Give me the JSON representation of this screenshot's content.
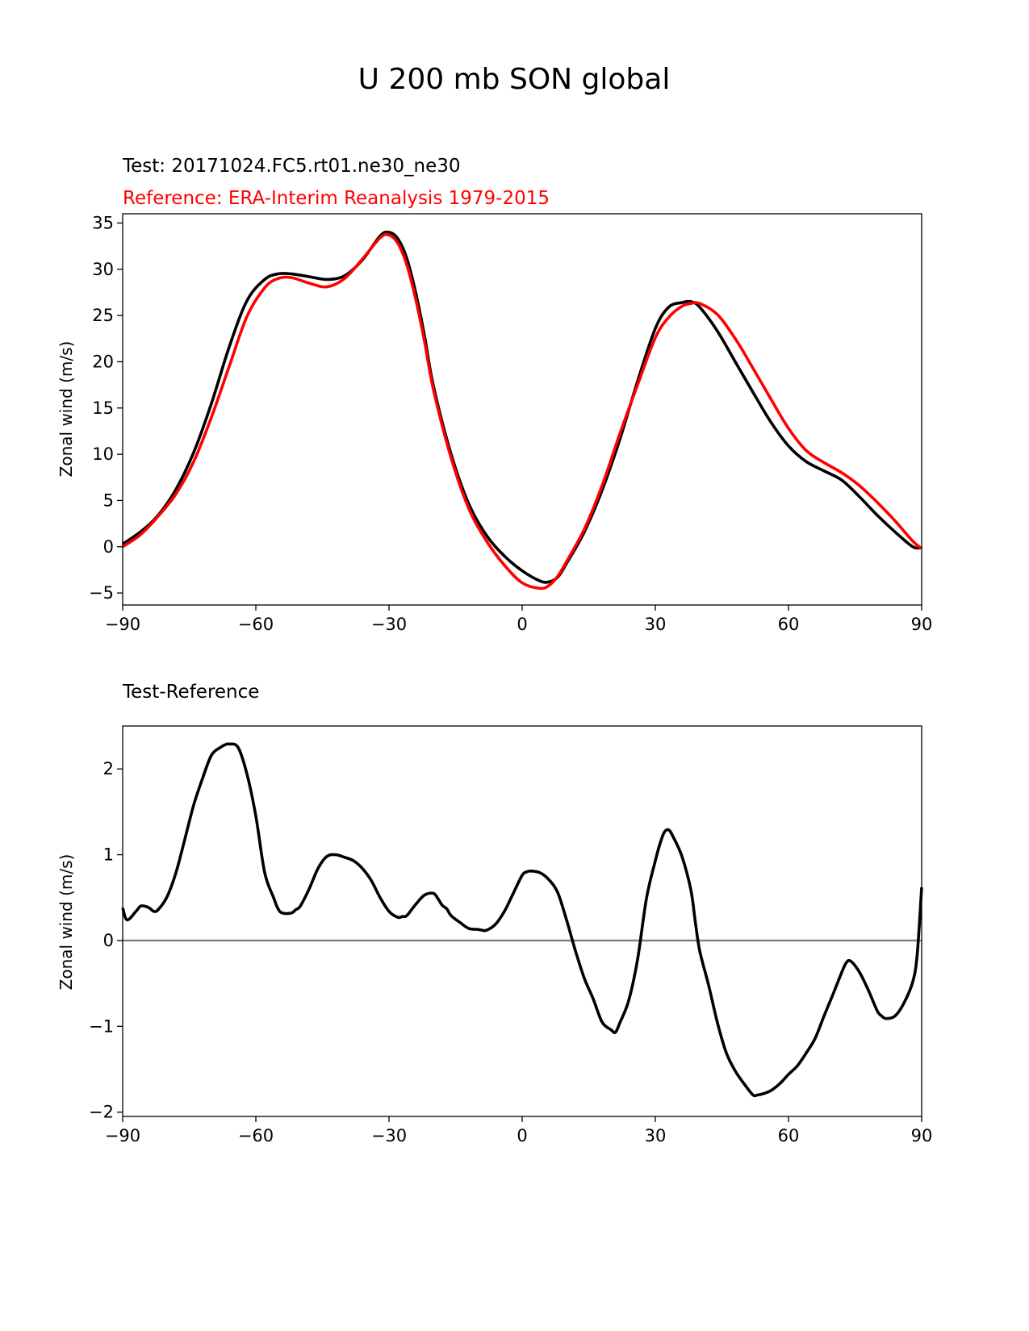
{
  "figure": {
    "title": "U 200 mb SON global"
  },
  "top_panel": {
    "test_label": "Test: 20171024.FC5.rt01.ne30_ne30",
    "reference_label": "Reference: ERA-Interim Reanalysis 1979-2015",
    "ylabel": "Zonal wind (m/s)",
    "colors": {
      "test": "#000000",
      "reference": "#ff0000"
    }
  },
  "bottom_panel": {
    "title": "Test-Reference",
    "ylabel": "Zonal wind (m/s)",
    "colors": {
      "diff": "#000000",
      "zero_line": "#808080"
    }
  },
  "chart_data": [
    {
      "type": "line",
      "title": "U 200 mb SON global",
      "xlabel": "",
      "ylabel": "Zonal wind (m/s)",
      "xlim": [
        -90,
        90
      ],
      "ylim": [
        -6.3,
        36
      ],
      "xticks": [
        -90,
        -60,
        -30,
        0,
        30,
        60,
        90
      ],
      "yticks": [
        -5,
        0,
        5,
        10,
        15,
        20,
        25,
        30,
        35
      ],
      "grid": false,
      "series": [
        {
          "name": "Test: 20171024.FC5.rt01.ne30_ne30",
          "color": "#000000",
          "x": [
            -90,
            -86,
            -82,
            -78,
            -74,
            -70,
            -66,
            -62,
            -58,
            -55,
            -52,
            -48,
            -44,
            -40,
            -36,
            -32,
            -30,
            -28,
            -26,
            -24,
            -22,
            -20,
            -16,
            -12,
            -8,
            -4,
            0,
            4,
            6,
            8,
            10,
            14,
            18,
            22,
            26,
            30,
            33,
            36,
            38,
            40,
            44,
            48,
            52,
            56,
            60,
            64,
            68,
            72,
            76,
            80,
            84,
            88,
            90
          ],
          "values": [
            0.3,
            1.6,
            3.4,
            6.2,
            10.2,
            15.5,
            21.6,
            26.6,
            28.9,
            29.5,
            29.5,
            29.2,
            28.9,
            29.3,
            31.0,
            33.6,
            34.0,
            33.3,
            31.2,
            27.5,
            22.8,
            17.4,
            10.0,
            4.6,
            1.2,
            -1.0,
            -2.6,
            -3.7,
            -3.8,
            -3.3,
            -1.8,
            1.6,
            6.1,
            11.6,
            17.9,
            23.6,
            25.9,
            26.4,
            26.5,
            25.9,
            23.3,
            20.0,
            16.7,
            13.5,
            10.9,
            9.2,
            8.2,
            7.2,
            5.4,
            3.4,
            1.6,
            0.0,
            -0.1
          ]
        },
        {
          "name": "Reference: ERA-Interim Reanalysis 1979-2015",
          "color": "#ff0000",
          "x": [
            -90,
            -86,
            -82,
            -78,
            -74,
            -70,
            -66,
            -62,
            -58,
            -55,
            -52,
            -48,
            -44,
            -40,
            -36,
            -32,
            -30,
            -28,
            -26,
            -24,
            -22,
            -20,
            -16,
            -12,
            -8,
            -4,
            0,
            4,
            6,
            8,
            10,
            14,
            18,
            22,
            26,
            30,
            33,
            36,
            38,
            40,
            44,
            48,
            52,
            56,
            60,
            64,
            68,
            72,
            76,
            80,
            84,
            88,
            90
          ],
          "values": [
            0.0,
            1.3,
            3.3,
            5.7,
            9.2,
            14.0,
            19.5,
            24.9,
            28.0,
            29.0,
            29.1,
            28.5,
            28.1,
            29.0,
            31.1,
            33.4,
            33.7,
            32.8,
            30.5,
            26.8,
            22.2,
            17.0,
            9.6,
            4.1,
            0.6,
            -2.0,
            -3.9,
            -4.5,
            -4.2,
            -3.2,
            -1.6,
            1.9,
            6.6,
            12.2,
            17.5,
            22.6,
            24.8,
            26.0,
            26.3,
            26.3,
            25.1,
            22.5,
            19.3,
            16.0,
            12.8,
            10.4,
            9.1,
            8.0,
            6.6,
            4.8,
            2.8,
            0.6,
            -0.2
          ]
        }
      ]
    },
    {
      "type": "line",
      "title": "Test-Reference",
      "xlabel": "",
      "ylabel": "Zonal wind (m/s)",
      "xlim": [
        -90,
        90
      ],
      "ylim": [
        -2.05,
        2.5
      ],
      "xticks": [
        -90,
        -60,
        -30,
        0,
        30,
        60,
        90
      ],
      "yticks": [
        -2,
        -1,
        0,
        1,
        2
      ],
      "grid": false,
      "reference_line": 0,
      "series": [
        {
          "name": "Test-Reference",
          "color": "#000000",
          "x": [
            -90,
            -89,
            -87,
            -86,
            -85,
            -84,
            -83,
            -82,
            -80,
            -78,
            -76,
            -74,
            -72,
            -70,
            -68,
            -67,
            -66,
            -64,
            -62,
            -60,
            -58,
            -56,
            -55,
            -54,
            -52,
            -51,
            -50,
            -48,
            -46,
            -44,
            -42,
            -40,
            -38,
            -36,
            -34,
            -32,
            -30,
            -28,
            -27,
            -26,
            -24,
            -22,
            -20,
            -19,
            -18,
            -17,
            -16,
            -14,
            -12,
            -10,
            -9,
            -8,
            -6,
            -4,
            -2,
            0,
            1,
            2,
            4,
            6,
            8,
            10,
            12,
            14,
            16,
            18,
            20,
            21,
            22,
            24,
            26,
            28,
            30,
            31,
            32,
            33,
            34,
            36,
            38,
            39,
            40,
            42,
            44,
            46,
            48,
            50,
            52,
            53,
            54,
            56,
            58,
            60,
            62,
            64,
            66,
            68,
            70,
            72,
            73,
            74,
            76,
            78,
            80,
            81,
            82,
            84,
            86,
            88,
            89,
            90
          ],
          "values": [
            0.38,
            0.24,
            0.34,
            0.4,
            0.4,
            0.38,
            0.34,
            0.36,
            0.51,
            0.79,
            1.18,
            1.58,
            1.89,
            2.16,
            2.25,
            2.28,
            2.29,
            2.25,
            1.94,
            1.45,
            0.79,
            0.5,
            0.37,
            0.32,
            0.32,
            0.36,
            0.4,
            0.6,
            0.84,
            0.98,
            1.0,
            0.97,
            0.93,
            0.84,
            0.7,
            0.5,
            0.34,
            0.27,
            0.28,
            0.29,
            0.42,
            0.53,
            0.55,
            0.49,
            0.41,
            0.37,
            0.29,
            0.21,
            0.14,
            0.13,
            0.12,
            0.12,
            0.19,
            0.34,
            0.55,
            0.76,
            0.8,
            0.81,
            0.79,
            0.71,
            0.56,
            0.24,
            -0.12,
            -0.44,
            -0.68,
            -0.95,
            -1.04,
            -1.07,
            -0.96,
            -0.7,
            -0.22,
            0.49,
            0.93,
            1.12,
            1.26,
            1.29,
            1.21,
            0.98,
            0.59,
            0.22,
            -0.12,
            -0.52,
            -0.96,
            -1.31,
            -1.52,
            -1.67,
            -1.8,
            -1.8,
            -1.79,
            -1.75,
            -1.67,
            -1.56,
            -1.46,
            -1.31,
            -1.14,
            -0.88,
            -0.63,
            -0.37,
            -0.26,
            -0.24,
            -0.37,
            -0.58,
            -0.82,
            -0.88,
            -0.91,
            -0.88,
            -0.73,
            -0.48,
            -0.16,
            0.62
          ]
        }
      ]
    }
  ]
}
